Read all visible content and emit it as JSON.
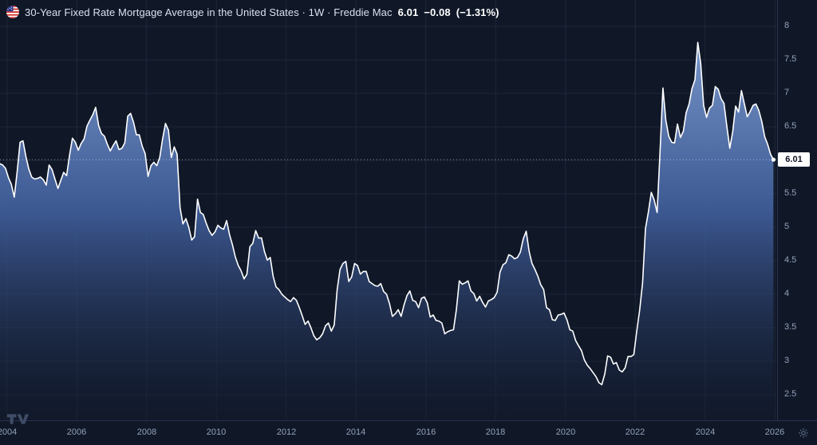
{
  "header": {
    "title": "30-Year Fixed Rate Mortgage Average in the United States · 1W · Freddie Mac",
    "last_price": "6.01",
    "change": "−0.08",
    "change_pct": "(−1.31%)"
  },
  "price_label": "6.01",
  "icons": {
    "flag": "us-flag-icon",
    "logo": "tradingview-logo-icon",
    "settings": "gear-icon"
  },
  "chart_data": {
    "type": "area",
    "title": "30-Year Fixed Rate Mortgage Average in the United States",
    "interval": "1W",
    "source": "Freddie Mac",
    "series_name": "30-Year Fixed Rate Mortgage Average (%)",
    "current_price": 6.01,
    "change": -0.08,
    "change_percent": -1.31,
    "x_start": 2003.7917,
    "x_step": 0.0833333,
    "values": [
      5.95,
      5.93,
      5.88,
      5.74,
      5.64,
      5.45,
      5.83,
      6.27,
      6.29,
      6.06,
      5.87,
      5.75,
      5.72,
      5.73,
      5.75,
      5.71,
      5.63,
      5.93,
      5.86,
      5.72,
      5.58,
      5.7,
      5.82,
      5.77,
      6.07,
      6.33,
      6.27,
      6.15,
      6.25,
      6.32,
      6.51,
      6.6,
      6.68,
      6.79,
      6.52,
      6.4,
      6.36,
      6.24,
      6.14,
      6.22,
      6.29,
      6.16,
      6.18,
      6.26,
      6.66,
      6.7,
      6.57,
      6.38,
      6.38,
      6.21,
      6.1,
      5.76,
      5.92,
      5.97,
      5.92,
      6.04,
      6.32,
      6.55,
      6.45,
      6.04,
      6.2,
      6.09,
      5.29,
      5.05,
      5.13,
      5.0,
      4.81,
      4.86,
      5.42,
      5.22,
      5.19,
      5.06,
      4.95,
      4.88,
      4.93,
      5.03,
      4.99,
      4.97,
      5.1,
      4.89,
      4.74,
      4.56,
      4.43,
      4.35,
      4.23,
      4.3,
      4.71,
      4.76,
      4.95,
      4.84,
      4.84,
      4.64,
      4.51,
      4.55,
      4.27,
      4.11,
      4.07,
      4.0,
      3.96,
      3.92,
      3.89,
      3.95,
      3.91,
      3.8,
      3.68,
      3.55,
      3.6,
      3.5,
      3.38,
      3.32,
      3.35,
      3.41,
      3.53,
      3.57,
      3.45,
      3.54,
      4.07,
      4.37,
      4.46,
      4.49,
      4.19,
      4.26,
      4.46,
      4.43,
      4.3,
      4.34,
      4.34,
      4.19,
      4.16,
      4.13,
      4.12,
      4.16,
      4.04,
      4.0,
      3.86,
      3.67,
      3.71,
      3.77,
      3.67,
      3.84,
      3.98,
      4.05,
      3.91,
      3.89,
      3.8,
      3.94,
      3.96,
      3.87,
      3.66,
      3.69,
      3.61,
      3.6,
      3.57,
      3.41,
      3.44,
      3.46,
      3.47,
      3.77,
      4.2,
      4.15,
      4.17,
      4.2,
      4.05,
      4.01,
      3.9,
      3.97,
      3.88,
      3.81,
      3.9,
      3.92,
      3.95,
      4.03,
      4.33,
      4.44,
      4.47,
      4.59,
      4.57,
      4.53,
      4.55,
      4.63,
      4.83,
      4.94,
      4.64,
      4.46,
      4.37,
      4.27,
      4.14,
      4.07,
      3.8,
      3.77,
      3.62,
      3.61,
      3.69,
      3.7,
      3.72,
      3.62,
      3.47,
      3.45,
      3.31,
      3.23,
      3.16,
      3.02,
      2.94,
      2.89,
      2.83,
      2.77,
      2.68,
      2.65,
      2.81,
      3.08,
      3.06,
      2.96,
      2.98,
      2.87,
      2.84,
      2.9,
      3.07,
      3.07,
      3.1,
      3.45,
      3.76,
      4.17,
      4.98,
      5.23,
      5.52,
      5.41,
      5.22,
      6.11,
      7.08,
      6.6,
      6.36,
      6.27,
      6.26,
      6.54,
      6.34,
      6.43,
      6.71,
      6.84,
      7.07,
      7.2,
      7.76,
      7.44,
      6.82,
      6.64,
      6.78,
      6.82,
      7.1,
      7.06,
      6.92,
      6.85,
      6.5,
      6.18,
      6.43,
      6.81,
      6.72,
      7.04,
      6.84,
      6.65,
      6.73,
      6.82,
      6.84,
      6.74,
      6.58,
      6.35,
      6.24,
      6.09,
      6.01
    ],
    "xlim": [
      2003.8,
      2026.063
    ],
    "ylim": [
      2.119,
      8.393
    ],
    "y_ticks": [
      8,
      7.5,
      7,
      6.5,
      6,
      5.5,
      5,
      4.5,
      4,
      3.5,
      3,
      2.5
    ],
    "x_ticks": [
      2004,
      2006,
      2008,
      2010,
      2012,
      2014,
      2016,
      2018,
      2020,
      2022,
      2024,
      2026
    ],
    "grid": true,
    "legend_position": "top-left",
    "colors": {
      "background": "#101828",
      "grid": "rgba(150,170,210,0.10)",
      "line": "#ffffff",
      "fill_top": "rgba(125,156,210,0.95)",
      "fill_mid": "rgba(66,97,160,0.88)",
      "fill_bottom": "rgba(18,26,45,0.30)",
      "axis_text": "#93a1b8",
      "axis_border": "#27334d",
      "price_line": "rgba(255,255,255,0.5)",
      "price_label_bg": "#ffffff",
      "price_label_text": "#0c1222"
    }
  }
}
